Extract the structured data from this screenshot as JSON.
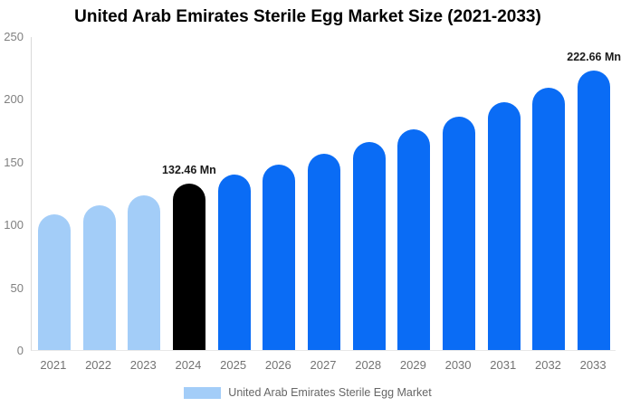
{
  "chart_data": {
    "type": "bar",
    "title": "United Arab Emirates Sterile Egg Market Size (2021-2033)",
    "categories": [
      "2021",
      "2022",
      "2023",
      "2024",
      "2025",
      "2026",
      "2027",
      "2028",
      "2029",
      "2030",
      "2031",
      "2032",
      "2033"
    ],
    "values": [
      108.2,
      115.4,
      123.3,
      132.46,
      139.5,
      147.8,
      156.5,
      165.8,
      175.5,
      186.0,
      197.2,
      209.0,
      222.66
    ],
    "unit": "Mn",
    "xlabel": "",
    "ylabel": "",
    "ylim": [
      0,
      250
    ],
    "yticks": [
      0,
      50,
      100,
      150,
      200,
      250
    ],
    "grid": false,
    "colors": [
      "#a3cdf8",
      "#a3cdf8",
      "#a3cdf8",
      "#000000",
      "#0a6cf5",
      "#0a6cf5",
      "#0a6cf5",
      "#0a6cf5",
      "#0a6cf5",
      "#0a6cf5",
      "#0a6cf5",
      "#0a6cf5",
      "#0a6cf5"
    ],
    "palette": {
      "historical": "#a3cdf8",
      "base_year": "#000000",
      "forecast": "#0a6cf5"
    },
    "data_labels": [
      {
        "year": "2024",
        "text": "132.46 Mn"
      },
      {
        "year": "2033",
        "text": "222.66 Mn"
      }
    ],
    "legend": {
      "position": "bottom",
      "label": "United Arab Emirates Sterile Egg Market",
      "swatch_color": "#a3cdf8"
    }
  }
}
